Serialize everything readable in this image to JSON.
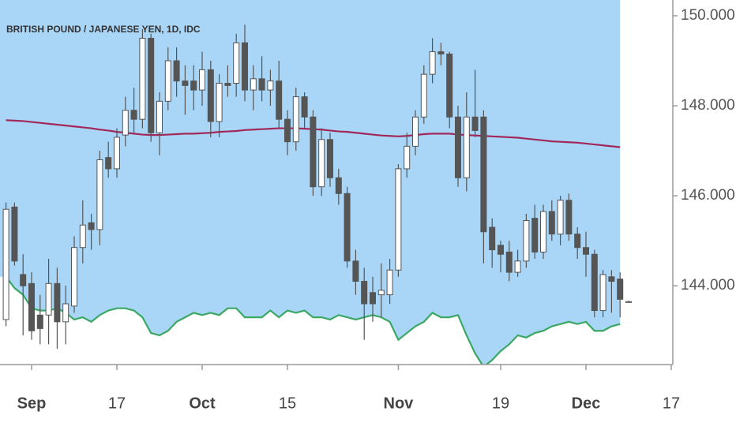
{
  "chart_data": {
    "type": "candlestick",
    "title": "BRITISH POUND / JAPANESE YEN, 1D, IDC",
    "categories": [
      null,
      null,
      null,
      "Sep",
      null,
      null,
      null,
      null,
      null,
      null,
      null,
      null,
      null,
      "17",
      null,
      null,
      null,
      null,
      null,
      null,
      null,
      null,
      null,
      "Oct",
      null,
      null,
      null,
      null,
      null,
      null,
      null,
      null,
      null,
      "15",
      null,
      null,
      null,
      null,
      null,
      null,
      null,
      null,
      null,
      null,
      null,
      null,
      "Nov",
      null,
      null,
      null,
      null,
      null,
      null,
      null,
      null,
      null,
      null,
      null,
      "19",
      null,
      null,
      null,
      null,
      null,
      null,
      null,
      null,
      null,
      "Dec",
      null,
      null,
      null,
      null,
      null,
      null,
      null,
      null,
      null,
      "17"
    ],
    "open": [
      143.25,
      145.75,
      144.25,
      144.05,
      143.35,
      143.35,
      144.05,
      143.2,
      143.55,
      144.85,
      145.4,
      145.25,
      146.85,
      146.6,
      147.35,
      147.9,
      147.7,
      149.5,
      147.4,
      148.1,
      149.0,
      148.55,
      148.55,
      148.35,
      148.8,
      147.65,
      148.5,
      148.5,
      149.4,
      148.35,
      148.6,
      148.35,
      148.55,
      147.7,
      147.2,
      148.2,
      147.75,
      146.2,
      147.25,
      146.4,
      146.05,
      144.55,
      144.1,
      143.85,
      143.8,
      143.8,
      144.35,
      146.6,
      147.1,
      147.75,
      148.7,
      149.2,
      149.15,
      147.75,
      146.4,
      147.75,
      147.75,
      145.3,
      144.9,
      144.75,
      144.3,
      144.55,
      145.5,
      144.75,
      145.65,
      145.15,
      145.9,
      145.15,
      144.85,
      144.7,
      143.45,
      144.2,
      144.15,
      143.65,
      null,
      null,
      null,
      null,
      null
    ],
    "high": [
      145.85,
      145.85,
      144.7,
      144.3,
      143.8,
      144.6,
      144.4,
      144.0,
      145.1,
      145.9,
      145.6,
      147.0,
      147.2,
      147.5,
      148.2,
      148.4,
      149.7,
      149.6,
      148.3,
      149.3,
      149.3,
      148.9,
      148.9,
      149.2,
      149.0,
      148.7,
      148.9,
      149.6,
      149.8,
      148.9,
      149.1,
      148.8,
      149.0,
      147.9,
      148.4,
      148.3,
      147.9,
      147.5,
      147.4,
      146.6,
      146.2,
      144.8,
      144.4,
      144.2,
      144.5,
      144.6,
      146.7,
      147.4,
      147.9,
      148.9,
      149.5,
      149.4,
      149.2,
      148.0,
      148.3,
      148.8,
      147.9,
      145.5,
      145.0,
      145.0,
      144.8,
      145.6,
      145.8,
      145.8,
      145.9,
      146.0,
      146.05,
      145.3,
      145.2,
      144.8,
      144.35,
      144.35,
      144.3,
      143.67,
      null,
      null,
      null,
      null,
      null
    ],
    "low": [
      143.1,
      144.45,
      142.9,
      142.8,
      142.7,
      142.7,
      142.6,
      142.7,
      143.4,
      144.5,
      144.8,
      144.9,
      146.4,
      146.4,
      147.1,
      147.4,
      147.5,
      147.2,
      146.9,
      147.9,
      148.2,
      147.8,
      147.9,
      148.0,
      147.3,
      147.3,
      148.2,
      148.2,
      148.1,
      147.9,
      148.1,
      148.0,
      147.5,
      146.9,
      147.0,
      147.5,
      146.0,
      146.0,
      146.2,
      145.8,
      144.4,
      143.8,
      142.8,
      143.2,
      143.3,
      143.6,
      144.2,
      146.4,
      146.9,
      147.6,
      148.5,
      148.9,
      147.5,
      146.2,
      146.1,
      147.3,
      144.5,
      144.4,
      144.3,
      144.1,
      144.2,
      144.4,
      144.6,
      144.6,
      145.0,
      144.9,
      145.0,
      144.6,
      144.2,
      143.3,
      143.3,
      143.4,
      143.3,
      143.63,
      null,
      null,
      null,
      null,
      null
    ],
    "close": [
      145.7,
      144.55,
      144.0,
      143.0,
      143.05,
      144.05,
      143.2,
      143.6,
      144.85,
      145.35,
      145.25,
      146.8,
      146.6,
      147.3,
      147.9,
      147.7,
      149.5,
      147.4,
      148.1,
      149.0,
      148.55,
      148.45,
      148.35,
      148.8,
      147.65,
      148.5,
      148.45,
      149.4,
      148.35,
      148.6,
      148.35,
      148.55,
      147.7,
      147.2,
      148.2,
      147.75,
      146.2,
      147.25,
      146.4,
      146.05,
      144.55,
      144.1,
      143.6,
      143.6,
      143.9,
      144.35,
      146.6,
      147.1,
      147.75,
      148.7,
      149.2,
      149.15,
      147.75,
      146.4,
      147.75,
      147.45,
      145.2,
      144.8,
      144.7,
      144.3,
      144.55,
      145.45,
      144.75,
      145.65,
      145.15,
      145.9,
      145.15,
      144.85,
      144.7,
      143.45,
      144.25,
      144.1,
      143.7,
      143.65,
      null,
      null,
      null,
      null,
      null
    ],
    "up_color": "#ffffff",
    "down_color": "#555555",
    "overlays": [
      {
        "color": "#3aa864",
        "fill": "#a9d5f7",
        "values": [
          144.2,
          143.95,
          143.8,
          143.5,
          143.45,
          143.45,
          143.5,
          143.4,
          143.25,
          143.3,
          143.2,
          143.35,
          143.45,
          143.5,
          143.5,
          143.45,
          143.3,
          142.95,
          142.9,
          143.0,
          143.2,
          143.3,
          143.4,
          143.35,
          143.4,
          143.35,
          143.5,
          143.5,
          143.3,
          143.3,
          143.3,
          143.45,
          143.3,
          143.45,
          143.4,
          143.45,
          143.3,
          143.3,
          143.25,
          143.35,
          143.3,
          143.25,
          143.3,
          143.35,
          143.3,
          143.2,
          142.8,
          142.95,
          143.1,
          143.2,
          143.4,
          143.3,
          143.3,
          143.35,
          142.9,
          142.5,
          142.2,
          142.35,
          142.55,
          142.7,
          142.9,
          142.85,
          142.95,
          143.0,
          143.1,
          143.15,
          143.2,
          143.15,
          143.2,
          143.0,
          143.0,
          143.1,
          143.15,
          null,
          null,
          null,
          null,
          null,
          null
        ]
      },
      {
        "color": "#a3285a",
        "values": [
          147.68,
          147.67,
          147.66,
          147.64,
          147.62,
          147.6,
          147.58,
          147.56,
          147.54,
          147.52,
          147.5,
          147.47,
          147.45,
          147.42,
          147.4,
          147.38,
          147.36,
          147.35,
          147.35,
          147.36,
          147.37,
          147.38,
          147.38,
          147.39,
          147.4,
          147.42,
          147.43,
          147.44,
          147.46,
          147.47,
          147.48,
          147.49,
          147.5,
          147.5,
          147.5,
          147.49,
          147.48,
          147.47,
          147.45,
          147.43,
          147.42,
          147.4,
          147.38,
          147.36,
          147.34,
          147.33,
          147.32,
          147.33,
          147.35,
          147.37,
          147.38,
          147.38,
          147.38,
          147.36,
          147.35,
          147.34,
          147.33,
          147.32,
          147.31,
          147.3,
          147.29,
          147.27,
          147.25,
          147.23,
          147.21,
          147.2,
          147.19,
          147.18,
          147.16,
          147.14,
          147.12,
          147.1,
          147.08,
          null,
          null,
          null,
          null,
          null,
          null
        ]
      }
    ],
    "ylim": [
      142.25,
      150.35
    ],
    "yticks": [
      {
        "value": 144,
        "label": "144.000"
      },
      {
        "value": 146,
        "label": "146.000"
      },
      {
        "value": 148,
        "label": "148.000"
      },
      {
        "value": 150,
        "label": "150.000"
      }
    ],
    "y_axis_side": "right"
  }
}
